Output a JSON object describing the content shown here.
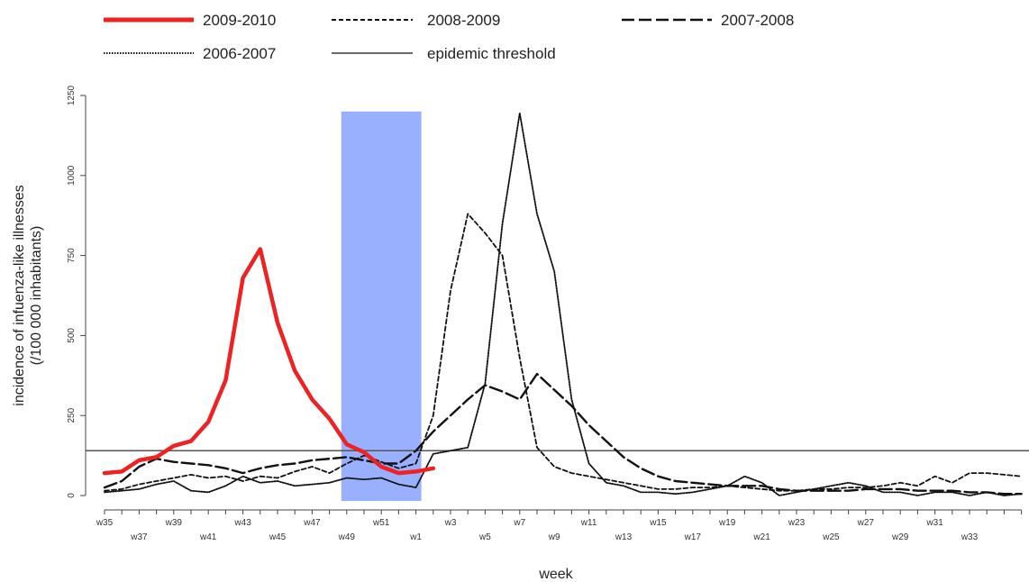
{
  "chart_data": {
    "type": "line",
    "title": "",
    "xlabel": "week",
    "ylabel": "incidence of infuenza-like illnesses",
    "ylabel2": "(/100 000 inhabitants)",
    "ylim": [
      0,
      1250
    ],
    "yticks": [
      0,
      250,
      500,
      750,
      1000,
      1250
    ],
    "xtick_labels": [
      "w35",
      "w37",
      "w39",
      "w41",
      "w43",
      "w45",
      "w47",
      "w49",
      "w51",
      "w1",
      "w3",
      "w5",
      "w7",
      "w9",
      "w11",
      "w13",
      "w15",
      "w17",
      "w19",
      "w21",
      "w23",
      "w25",
      "w27",
      "w29",
      "w31",
      "w33"
    ],
    "threshold": {
      "name": "epidemic threshold",
      "value": 140
    },
    "highlight": {
      "from_index": 14,
      "to_index": 18,
      "color": "#99b0ff",
      "top": 1200
    },
    "legend_position": "top",
    "series": [
      {
        "name": "2009-2010",
        "style": "solid-thick",
        "color": "#ee2222",
        "values": [
          70,
          75,
          110,
          120,
          155,
          170,
          230,
          360,
          680,
          770,
          540,
          390,
          300,
          240,
          160,
          135,
          90,
          70,
          75,
          85
        ]
      },
      {
        "name": "2008-2009",
        "style": "short-dash",
        "color": "#111111",
        "values": [
          15,
          20,
          35,
          45,
          55,
          65,
          55,
          60,
          45,
          60,
          55,
          75,
          90,
          70,
          100,
          125,
          105,
          85,
          100,
          250,
          640,
          880,
          820,
          750,
          430,
          150,
          90,
          70,
          60,
          50,
          40,
          30,
          20,
          20,
          25,
          25,
          30,
          25,
          20,
          15,
          15,
          20,
          20,
          25,
          25,
          30,
          40,
          30,
          60,
          40,
          70,
          70,
          65,
          60
        ]
      },
      {
        "name": "2007-2008",
        "style": "long-dash",
        "color": "#111111",
        "values": [
          25,
          45,
          90,
          115,
          105,
          100,
          95,
          85,
          70,
          85,
          95,
          100,
          110,
          115,
          120,
          110,
          100,
          100,
          140,
          200,
          250,
          300,
          345,
          325,
          300,
          380,
          330,
          280,
          220,
          170,
          120,
          85,
          60,
          45,
          40,
          35,
          30,
          30,
          30,
          20,
          15,
          15,
          15,
          15,
          20,
          20,
          20,
          15,
          15,
          15,
          10,
          10,
          5,
          5
        ]
      },
      {
        "name": "2006-2007",
        "style": "dotted",
        "color": "#111111",
        "values": [
          10,
          15,
          20,
          35,
          45,
          15,
          10,
          30,
          60,
          40,
          45,
          30,
          35,
          40,
          55,
          50,
          55,
          35,
          25,
          130,
          140,
          150,
          350,
          850,
          1195,
          880,
          700,
          300,
          100,
          40,
          30,
          10,
          10,
          5,
          10,
          20,
          30,
          60,
          40,
          0,
          10,
          20,
          30,
          40,
          30,
          10,
          10,
          0,
          10,
          10,
          0,
          10,
          0,
          5
        ]
      }
    ]
  }
}
